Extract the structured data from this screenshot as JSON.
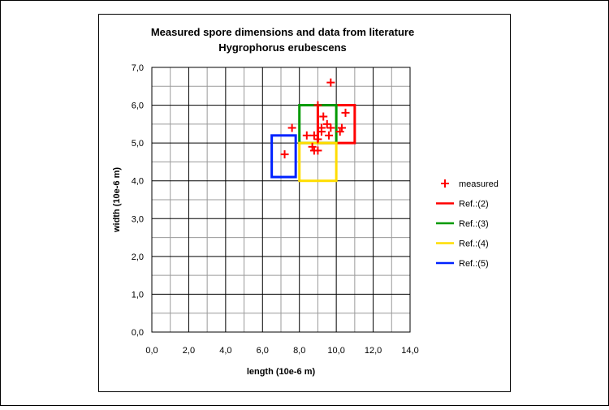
{
  "chart_data": {
    "type": "scatter",
    "title": "Measured spore dimensions and data from literature",
    "subtitle": "Hygrophorus erubescens",
    "xlabel": "length (10e-6 m)",
    "ylabel": "width (10e-6 m)",
    "xlim": [
      0,
      14
    ],
    "ylim": [
      0,
      7
    ],
    "x_ticks": [
      "0,0",
      "2,0",
      "4,0",
      "6,0",
      "8,0",
      "10,0",
      "12,0",
      "14,0"
    ],
    "y_ticks": [
      "0,0",
      "1,0",
      "2,0",
      "3,0",
      "4,0",
      "5,0",
      "6,0",
      "7,0"
    ],
    "grid": true,
    "legend_position": "right",
    "series": [
      {
        "name": "measured",
        "marker": "plus",
        "color": "#ff0000",
        "points": [
          [
            9.7,
            6.6
          ],
          [
            9.0,
            6.0
          ],
          [
            10.5,
            5.8
          ],
          [
            9.3,
            5.7
          ],
          [
            9.5,
            5.5
          ],
          [
            9.2,
            5.4
          ],
          [
            9.7,
            5.4
          ],
          [
            10.3,
            5.4
          ],
          [
            7.6,
            5.4
          ],
          [
            9.2,
            5.3
          ],
          [
            10.2,
            5.3
          ],
          [
            8.4,
            5.2
          ],
          [
            8.8,
            5.2
          ],
          [
            9.6,
            5.2
          ],
          [
            9.0,
            5.1
          ],
          [
            8.7,
            4.9
          ],
          [
            9.0,
            4.8
          ],
          [
            8.8,
            4.8
          ],
          [
            7.2,
            4.7
          ]
        ]
      },
      {
        "name": "Ref.:(2)",
        "type": "range",
        "color": "#ff0000",
        "x": [
          9.0,
          11.0
        ],
        "y": [
          5.0,
          6.0
        ]
      },
      {
        "name": "Ref.:(3)",
        "type": "range",
        "color": "#009900",
        "x": [
          8.0,
          10.0
        ],
        "y": [
          5.0,
          6.0
        ]
      },
      {
        "name": "Ref.:(4)",
        "type": "range",
        "color": "#ffdd00",
        "x": [
          8.0,
          10.0
        ],
        "y": [
          4.0,
          5.0
        ]
      },
      {
        "name": "Ref.:(5)",
        "type": "range",
        "color": "#0022ff",
        "x": [
          6.5,
          7.8
        ],
        "y": [
          4.1,
          5.2
        ]
      }
    ]
  }
}
